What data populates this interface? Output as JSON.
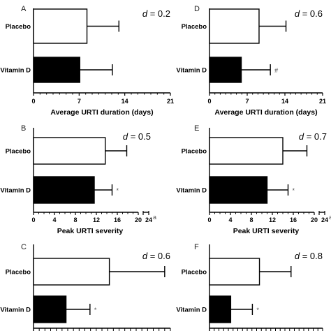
{
  "chart_data": [
    {
      "panel": "A",
      "type": "bar",
      "orientation": "horizontal",
      "effect_size": "d = 0.2",
      "categories": [
        "Placebo",
        "Vitamin D"
      ],
      "values": [
        8.2,
        7.1
      ],
      "error_upper": [
        13.1,
        12.1
      ],
      "fills": [
        "#ffffff",
        "#000000"
      ],
      "significance": [
        "",
        ""
      ],
      "xlim": [
        0,
        21
      ],
      "xticks": [
        "0",
        "7",
        "14",
        "21"
      ],
      "xlabel": "Average URTI duration (days)",
      "axis_break_label": ""
    },
    {
      "panel": "D",
      "type": "bar",
      "orientation": "horizontal",
      "effect_size": "d = 0.6",
      "categories": [
        "Placebo",
        "Vitamin D"
      ],
      "values": [
        9.2,
        5.9
      ],
      "error_upper": [
        14.2,
        11.3
      ],
      "fills": [
        "#ffffff",
        "#000000"
      ],
      "significance": [
        "",
        "#"
      ],
      "xlim": [
        0,
        21
      ],
      "xticks": [
        "0",
        "7",
        "14",
        "21"
      ],
      "xlabel": "Average URTI duration (days)",
      "axis_break_label": ""
    },
    {
      "panel": "B",
      "type": "bar",
      "orientation": "horizontal",
      "effect_size": "d = 0.5",
      "categories": [
        "Placebo",
        "Vitamin D"
      ],
      "values": [
        13.7,
        11.6
      ],
      "error_upper": [
        17.8,
        15.0
      ],
      "fills": [
        "#ffffff",
        "#000000"
      ],
      "significance": [
        "",
        "*"
      ],
      "xlim": [
        0,
        20
      ],
      "xticks": [
        "0",
        "4",
        "8",
        "12",
        "16",
        "20"
      ],
      "xlabel": "Peak URTI severity",
      "axis_break_label": "24",
      "axis_break_suffix": "a"
    },
    {
      "panel": "E",
      "type": "bar",
      "orientation": "horizontal",
      "effect_size": "d = 0.7",
      "categories": [
        "Placebo",
        "Vitamin D"
      ],
      "values": [
        14.0,
        11.0
      ],
      "error_upper": [
        18.6,
        15.0
      ],
      "fills": [
        "#ffffff",
        "#000000"
      ],
      "significance": [
        "",
        "*"
      ],
      "xlim": [
        0,
        20
      ],
      "xticks": [
        "0",
        "4",
        "8",
        "12",
        "16",
        "20"
      ],
      "xlabel": "Peak URTI severity",
      "axis_break_label": "24",
      "axis_break_suffix": "a"
    },
    {
      "panel": "C",
      "type": "bar",
      "orientation": "horizontal",
      "effect_size": "d = 0.6",
      "categories": [
        "Placebo",
        "Vitamin D"
      ],
      "values": [
        13.3,
        5.7
      ],
      "error_upper": [
        23.0,
        9.9
      ],
      "fills": [
        "#ffffff",
        "#000000"
      ],
      "significance": [
        "",
        "*"
      ],
      "xlim": [
        0,
        24
      ],
      "xticks": [],
      "xlabel": "",
      "axis_break_label": ""
    },
    {
      "panel": "F",
      "type": "bar",
      "orientation": "horizontal",
      "effect_size": "d = 0.8",
      "categories": [
        "Placebo",
        "Vitamin D"
      ],
      "values": [
        10.6,
        4.5
      ],
      "error_upper": [
        17.3,
        9.1
      ],
      "fills": [
        "#ffffff",
        "#000000"
      ],
      "significance": [
        "",
        "*"
      ],
      "xlim": [
        0,
        24
      ],
      "xticks": [],
      "xlabel": "",
      "axis_break_label": ""
    }
  ]
}
